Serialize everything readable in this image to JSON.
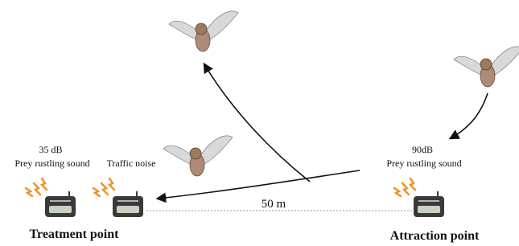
{
  "treatment": {
    "level": "35 dB",
    "sound": "Prey rustling sound",
    "noise": "Traffic noise",
    "label": "Treatment point"
  },
  "attraction": {
    "level": "90dB",
    "sound": "Prey rustling sound",
    "label": "Attraction point"
  },
  "distance": "50 m"
}
